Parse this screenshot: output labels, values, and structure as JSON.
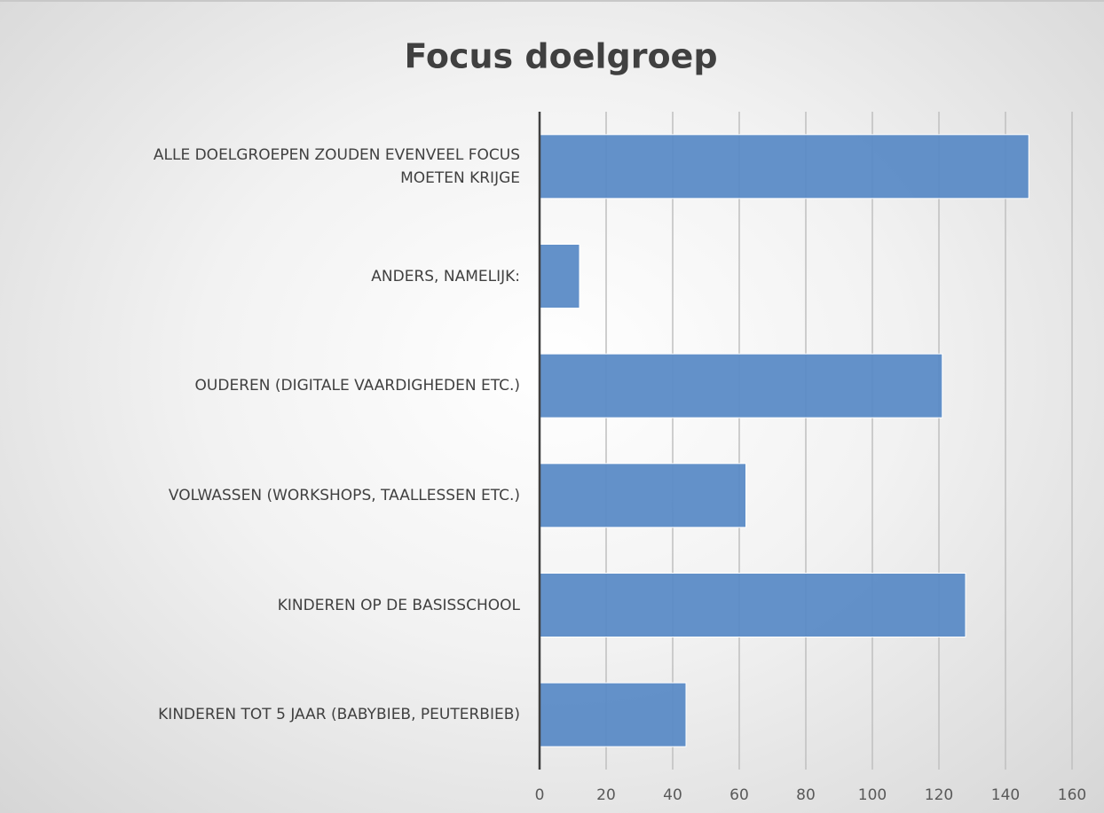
{
  "chart_data": {
    "type": "bar",
    "orientation": "horizontal",
    "title": "Focus doelgroep",
    "categories": [
      "ALLE DOELGROEPEN ZOUDEN EVENVEEL FOCUS MOETEN KRIJGE",
      "ANDERS, NAMELIJK:",
      "OUDEREN (DIGITALE VAARDIGHEDEN ETC.)",
      "VOLWASSEN (WORKSHOPS, TAALLESSEN ETC.)",
      "KINDEREN OP DE BASISSCHOOL",
      "KINDEREN TOT 5 JAAR (BABYBIEB, PEUTERBIEB)"
    ],
    "values": [
      147,
      12,
      121,
      62,
      128,
      44
    ],
    "color": "#5b8bc6",
    "xlim": [
      0,
      160
    ],
    "xticks": [
      0,
      20,
      40,
      60,
      80,
      100,
      120,
      140,
      160
    ],
    "grid": true
  }
}
